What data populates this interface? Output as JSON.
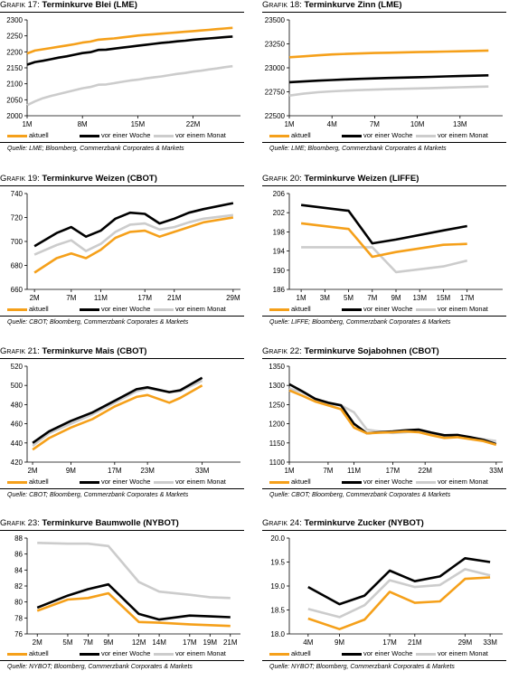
{
  "colors": {
    "aktuell": "#f5a01a",
    "woche": "#000000",
    "monat": "#cccccc"
  },
  "legend": {
    "aktuell": "aktuell",
    "woche": "vor einer Woche",
    "monat": "vor einem Monat"
  },
  "charts": [
    {
      "label": "Grafik 17:",
      "title": "Terminkurve Blei (LME)",
      "source": "Quelle: LME; Bloomberg, Commerzbank Corporates & Markets",
      "chart_data": {
        "type": "line",
        "x": [
          1,
          2,
          3,
          4,
          5,
          6,
          7,
          8,
          9,
          10,
          11,
          12,
          13,
          14,
          15,
          16,
          17,
          18,
          19,
          20,
          21,
          22,
          23,
          24,
          25,
          26,
          27
        ],
        "xticks": [
          "1M",
          "8M",
          "15M",
          "22M"
        ],
        "xtick_pos": [
          1,
          8,
          15,
          22
        ],
        "xlim": [
          1,
          28
        ],
        "ylim": [
          2000,
          2300
        ],
        "yticks": [
          2000,
          2050,
          2100,
          2150,
          2200,
          2250,
          2300
        ],
        "series": [
          {
            "key": "aktuell",
            "values": [
              2195,
              2204,
              2208,
              2212,
              2216,
              2220,
              2224,
              2229,
              2232,
              2238,
              2240,
              2242,
              2245,
              2248,
              2251,
              2253,
              2255,
              2257,
              2259,
              2261,
              2263,
              2265,
              2267,
              2269,
              2271,
              2273,
              2275
            ]
          },
          {
            "key": "woche",
            "values": [
              2160,
              2168,
              2172,
              2177,
              2182,
              2186,
              2191,
              2196,
              2199,
              2206,
              2207,
              2210,
              2213,
              2216,
              2219,
              2222,
              2225,
              2228,
              2230,
              2233,
              2235,
              2238,
              2240,
              2242,
              2244,
              2246,
              2248
            ]
          },
          {
            "key": "monat",
            "values": [
              2033,
              2045,
              2055,
              2062,
              2068,
              2074,
              2080,
              2086,
              2090,
              2097,
              2098,
              2102,
              2106,
              2110,
              2113,
              2117,
              2120,
              2123,
              2127,
              2131,
              2134,
              2138,
              2141,
              2145,
              2148,
              2152,
              2155
            ]
          }
        ]
      }
    },
    {
      "label": "Grafik 18:",
      "title": "Terminkurve Zinn (LME)",
      "source": "Quelle: LME; Bloomberg, Commerzbank Corporates & Markets",
      "chart_data": {
        "type": "line",
        "x": [
          1,
          2,
          3,
          4,
          5,
          6,
          7,
          8,
          9,
          10,
          11,
          12,
          13,
          14,
          15
        ],
        "xticks": [
          "1M",
          "4M",
          "7M",
          "10M",
          "13M"
        ],
        "xtick_pos": [
          1,
          4,
          7,
          10,
          13
        ],
        "xlim": [
          1,
          16
        ],
        "ylim": [
          22500,
          23500
        ],
        "yticks": [
          22500,
          22750,
          23000,
          23250,
          23500
        ],
        "series": [
          {
            "key": "aktuell",
            "values": [
              23110,
              23120,
              23130,
              23140,
              23145,
              23150,
              23155,
              23158,
              23161,
              23164,
              23167,
              23170,
              23173,
              23176,
              23180
            ]
          },
          {
            "key": "woche",
            "values": [
              22850,
              22858,
              22866,
              22873,
              22879,
              22885,
              22890,
              22894,
              22898,
              22902,
              22906,
              22910,
              22914,
              22918,
              22922
            ]
          },
          {
            "key": "monat",
            "values": [
              22710,
              22730,
              22745,
              22755,
              22762,
              22768,
              22773,
              22777,
              22781,
              22785,
              22789,
              22793,
              22797,
              22801,
              22805
            ]
          }
        ]
      }
    },
    {
      "label": "Grafik 19:",
      "title": "Terminkurve Weizen (CBOT)",
      "source": "Quelle: CBOT; Bloomberg, Commerzbank Corporates & Markets",
      "chart_data": {
        "type": "line",
        "x": [
          2,
          5,
          7,
          9,
          11,
          13,
          15,
          17,
          19,
          21,
          23,
          25,
          29
        ],
        "xticks": [
          "2M",
          "7M",
          "11M",
          "17M",
          "21M",
          "29M"
        ],
        "xtick_pos": [
          2,
          7,
          11,
          17,
          21,
          29
        ],
        "xlim": [
          1,
          30
        ],
        "ylim": [
          660,
          740
        ],
        "yticks": [
          660,
          680,
          700,
          720,
          740
        ],
        "series": [
          {
            "key": "aktuell",
            "values": [
              674,
              686,
              690,
              686,
              693,
              703,
              708,
              709,
              704,
              708,
              712,
              716,
              720
            ]
          },
          {
            "key": "woche",
            "values": [
              696,
              707,
              712,
              704,
              709,
              719,
              724,
              723,
              715,
              719,
              724,
              727,
              732
            ]
          },
          {
            "key": "monat",
            "values": [
              689,
              697,
              701,
              692,
              698,
              708,
              714,
              715,
              710,
              712,
              716,
              719,
              722
            ]
          }
        ]
      }
    },
    {
      "label": "Grafik 20:",
      "title": "Terminkurve Weizen (LIFFE)",
      "source": "Quelle: LIFFE; Bloomberg, Commerzbank Corporates & Markets",
      "chart_data": {
        "type": "line",
        "x": [
          1,
          5,
          7,
          9,
          13,
          15,
          17
        ],
        "xticks": [
          "1M",
          "3M",
          "5M",
          "7M",
          "9M",
          "13M",
          "15M",
          "17M"
        ],
        "xtick_pos": [
          1,
          3,
          5,
          7,
          9,
          11,
          13,
          15
        ],
        "xlim": [
          0,
          18
        ],
        "ylim": [
          186,
          206
        ],
        "yticks": [
          186,
          190,
          194,
          198,
          202,
          206
        ],
        "series": [
          {
            "key": "aktuell",
            "x": [
              1,
              5,
              7,
              9,
              13,
              15
            ],
            "values": [
              199.8,
              198.6,
              192.8,
              193.8,
              195.3,
              195.5
            ]
          },
          {
            "key": "woche",
            "x": [
              1,
              5,
              7,
              9,
              13,
              15
            ],
            "values": [
              203.6,
              202.4,
              195.6,
              196.4,
              198.3,
              199.2
            ]
          },
          {
            "key": "monat",
            "x": [
              1,
              5,
              7,
              9,
              13,
              15
            ],
            "values": [
              194.8,
              194.8,
              194.8,
              189.6,
              190.8,
              192.0
            ]
          }
        ]
      }
    },
    {
      "label": "Grafik 21:",
      "title": "Terminkurve Mais (CBOT)",
      "source": "Quelle: CBOT; Bloomberg, Commerzbank Corporates & Markets",
      "chart_data": {
        "type": "line",
        "x": [
          2,
          5,
          9,
          13,
          17,
          21,
          23,
          27,
          29,
          33,
          35,
          39
        ],
        "xticks": [
          "2M",
          "9M",
          "17M",
          "23M",
          "33M"
        ],
        "xtick_pos": [
          2,
          9,
          17,
          23,
          33
        ],
        "xlim": [
          1,
          40
        ],
        "ylim": [
          420,
          520
        ],
        "yticks": [
          420,
          440,
          460,
          480,
          500,
          520
        ],
        "series": [
          {
            "key": "aktuell",
            "x": [
              2,
              5,
              9,
              13,
              17,
              21,
              23,
              27,
              29,
              33
            ],
            "values": [
              433,
              445,
              456,
              465,
              478,
              488,
              490,
              482,
              487,
              500
            ]
          },
          {
            "key": "woche",
            "x": [
              2,
              5,
              9,
              13,
              17,
              21,
              23,
              27,
              29,
              33
            ],
            "values": [
              440,
              452,
              463,
              472,
              484,
              496,
              498,
              493,
              495,
              508
            ]
          },
          {
            "key": "monat",
            "x": [
              2,
              5,
              9,
              13,
              17,
              21,
              23,
              27,
              29,
              33
            ],
            "values": [
              437,
              450,
              460,
              470,
              482,
              494,
              497,
              493,
              494,
              505
            ]
          }
        ]
      }
    },
    {
      "label": "Grafik 22:",
      "title": "Terminkurve Sojabohnen (CBOT)",
      "source": "Quelle: CBOT; Bloomberg, Commerzbank Corporates & Markets",
      "chart_data": {
        "type": "line",
        "xticks": [
          "1M",
          "7M",
          "11M",
          "17M",
          "22M",
          "33M"
        ],
        "xtick_pos": [
          1,
          7,
          11,
          17,
          22,
          33
        ],
        "xlim": [
          1,
          34
        ],
        "ylim": [
          1100,
          1350
        ],
        "yticks": [
          1100,
          1150,
          1200,
          1250,
          1300,
          1350
        ],
        "series": [
          {
            "key": "aktuell",
            "x": [
              1,
              3,
              5,
              7,
              9,
              11,
              13,
              15,
              17,
              19,
              21,
              23,
              25,
              27,
              29,
              31,
              33
            ],
            "values": [
              1287,
              1273,
              1258,
              1248,
              1238,
              1190,
              1175,
              1177,
              1178,
              1180,
              1178,
              1170,
              1163,
              1165,
              1160,
              1155,
              1145
            ]
          },
          {
            "key": "woche",
            "x": [
              1,
              3,
              5,
              7,
              9,
              11,
              13,
              15,
              17,
              19,
              21,
              23,
              25,
              27,
              29,
              31,
              33
            ],
            "values": [
              1303,
              1285,
              1265,
              1255,
              1248,
              1200,
              1175,
              1178,
              1180,
              1183,
              1185,
              1177,
              1170,
              1171,
              1165,
              1158,
              1147
            ]
          },
          {
            "key": "monat",
            "x": [
              1,
              3,
              5,
              7,
              9,
              11,
              13,
              15,
              17,
              19,
              21,
              23,
              25,
              27,
              29,
              31,
              33
            ],
            "values": [
              1292,
              1282,
              1265,
              1252,
              1248,
              1230,
              1185,
              1180,
              1176,
              1178,
              1182,
              1175,
              1168,
              1170,
              1164,
              1160,
              1155
            ]
          }
        ]
      }
    },
    {
      "label": "Grafik 23:",
      "title": "Terminkurve Baumwolle (NYBOT)",
      "source": "Quelle: NYBOT; Bloomberg, Commerzbank Corporates & Markets",
      "chart_data": {
        "type": "line",
        "x": [
          2,
          5,
          7,
          9,
          12,
          14,
          17,
          19,
          21
        ],
        "xticks": [
          "2M",
          "5M",
          "7M",
          "9M",
          "12M",
          "14M",
          "17M",
          "19M",
          "21M"
        ],
        "xtick_pos": [
          2,
          5,
          7,
          9,
          12,
          14,
          17,
          19,
          21
        ],
        "xlim": [
          1,
          22
        ],
        "ylim": [
          76,
          88
        ],
        "yticks": [
          76,
          78,
          80,
          82,
          84,
          86,
          88
        ],
        "series": [
          {
            "key": "aktuell",
            "values": [
              78.9,
              80.3,
              80.5,
              81.1,
              77.5,
              77.4,
              77.2,
              77.1,
              77.0
            ]
          },
          {
            "key": "woche",
            "values": [
              79.3,
              80.8,
              81.6,
              82.2,
              78.5,
              77.8,
              78.3,
              78.2,
              78.1
            ]
          },
          {
            "key": "monat",
            "values": [
              87.4,
              87.3,
              87.3,
              87.0,
              82.5,
              81.3,
              80.9,
              80.6,
              80.5
            ]
          }
        ]
      }
    },
    {
      "label": "Grafik 24:",
      "title": "Terminkurve Zucker (NYBOT)",
      "source": "Quelle: NYBOT; Bloomberg, Commerzbank Corporates & Markets",
      "chart_data": {
        "type": "line",
        "x": [
          4,
          9,
          13,
          17,
          21,
          25,
          29,
          33
        ],
        "xticks": [
          "4M",
          "9M",
          "17M",
          "21M",
          "29M",
          "33M"
        ],
        "xtick_pos": [
          4,
          9,
          17,
          21,
          29,
          33
        ],
        "xlim": [
          1,
          35
        ],
        "ylim": [
          18.0,
          20.0
        ],
        "yticks": [
          "18.0",
          "18.5",
          "19.0",
          "19.5",
          "20.0"
        ],
        "series": [
          {
            "key": "aktuell",
            "x": [
              4,
              9,
              13,
              17,
              21,
              25,
              29,
              33
            ],
            "values": [
              18.32,
              18.1,
              18.3,
              18.88,
              18.65,
              18.68,
              19.15,
              19.18
            ]
          },
          {
            "key": "woche",
            "x": [
              4,
              9,
              13,
              17,
              21,
              25,
              29,
              33
            ],
            "values": [
              18.98,
              18.62,
              18.8,
              19.32,
              19.1,
              19.2,
              19.58,
              19.5
            ]
          },
          {
            "key": "monat",
            "x": [
              4,
              9,
              13,
              17,
              21,
              25,
              29,
              33
            ],
            "values": [
              18.52,
              18.35,
              18.6,
              19.12,
              18.98,
              19.02,
              19.35,
              19.22
            ]
          }
        ]
      }
    }
  ]
}
